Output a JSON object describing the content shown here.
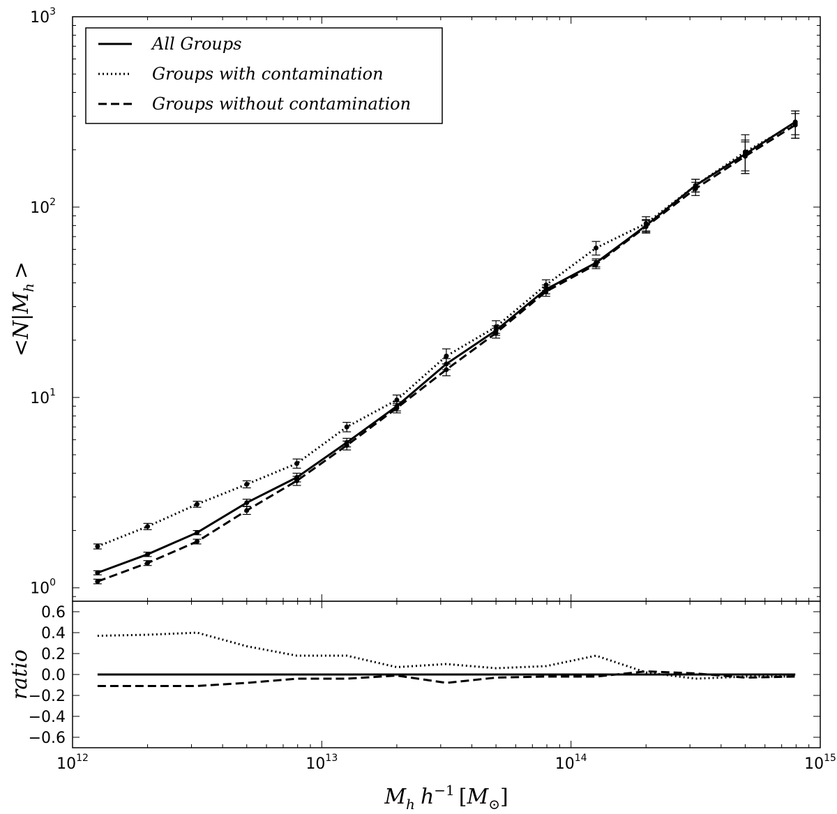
{
  "chart_data": {
    "type": "line",
    "xscale": "log",
    "xlim": [
      1000000000000.0,
      1000000000000000.0
    ],
    "xticks": [
      {
        "value": 1000000000000.0,
        "base": "10",
        "exp": "12"
      },
      {
        "value": 10000000000000.0,
        "base": "10",
        "exp": "13"
      },
      {
        "value": 100000000000000.0,
        "base": "10",
        "exp": "14"
      },
      {
        "value": 1000000000000000.0,
        "base": "10",
        "exp": "15"
      }
    ],
    "xlabel": "M_h h^{-1} [M_⊙]",
    "xlabel_parts": {
      "m": "M",
      "m_sub": "h",
      "h": "h",
      "h_sup": "−1",
      "open": "[",
      "msun": "M",
      "close": "]"
    },
    "top_panel": {
      "yscale": "log",
      "ylim": [
        0.85,
        1000
      ],
      "yticks": [
        {
          "value": 1,
          "base": "10",
          "exp": "0"
        },
        {
          "value": 10,
          "base": "10",
          "exp": "1"
        },
        {
          "value": 100,
          "base": "10",
          "exp": "2"
        },
        {
          "value": 1000,
          "base": "10",
          "exp": "3"
        }
      ],
      "ylabel": "<N|M_h>",
      "ylabel_parts": {
        "lt": "<",
        "n": "N",
        "bar": "|",
        "m": "M",
        "m_sub": "h",
        "gt": ">"
      },
      "legend_position": "top-left",
      "x": [
        1260000000000.0,
        2000000000000.0,
        3160000000000.0,
        5000000000000.0,
        7940000000000.0,
        12600000000000.0,
        20000000000000.0,
        31600000000000.0,
        50000000000000.0,
        79400000000000.0,
        126000000000000.0,
        200000000000000.0,
        316000000000000.0,
        500000000000000.0,
        794000000000000.0
      ],
      "series": [
        {
          "name": "All Groups",
          "style": "solid",
          "values": [
            1.2,
            1.5,
            1.95,
            2.8,
            3.8,
            5.8,
            9.0,
            15.0,
            22.5,
            37.0,
            51.0,
            80.0,
            130.0,
            190.0,
            280.0
          ],
          "errors": [
            0.03,
            0.04,
            0.05,
            0.12,
            0.2,
            0.3,
            0.5,
            1.0,
            1.3,
            2.0,
            2.5,
            6.0,
            10.0,
            35.0,
            40.0
          ]
        },
        {
          "name": "Groups with contamination",
          "style": "dotted",
          "values": [
            1.65,
            2.1,
            2.75,
            3.5,
            4.5,
            7.0,
            9.7,
            16.5,
            23.5,
            39.0,
            61.0,
            82.0,
            130.0,
            195.0,
            275.0
          ],
          "errors": [
            0.05,
            0.08,
            0.1,
            0.15,
            0.25,
            0.4,
            0.6,
            1.5,
            1.8,
            2.5,
            5.0,
            7.0,
            10.0,
            45.0,
            45.0
          ]
        },
        {
          "name": "Groups without contamination",
          "style": "dashed",
          "values": [
            1.08,
            1.35,
            1.75,
            2.55,
            3.65,
            5.6,
            8.8,
            14.0,
            21.8,
            36.0,
            50.0,
            79.0,
            125.0,
            185.0,
            270.0
          ],
          "errors": [
            0.03,
            0.04,
            0.05,
            0.12,
            0.2,
            0.3,
            0.5,
            1.0,
            1.3,
            2.0,
            2.5,
            6.0,
            10.0,
            35.0,
            40.0
          ]
        }
      ]
    },
    "bottom_panel": {
      "ylim": [
        -0.7,
        0.7
      ],
      "yticks": [
        "−0.6",
        "−0.4",
        "−0.2",
        "0.0",
        "0.2",
        "0.4",
        "0.6"
      ],
      "ytick_values": [
        -0.6,
        -0.4,
        -0.2,
        0.0,
        0.2,
        0.4,
        0.6
      ],
      "ylabel": "ratio",
      "x": [
        1260000000000.0,
        2000000000000.0,
        3160000000000.0,
        5000000000000.0,
        7940000000000.0,
        12600000000000.0,
        20000000000000.0,
        31600000000000.0,
        50000000000000.0,
        79400000000000.0,
        126000000000000.0,
        200000000000000.0,
        316000000000000.0,
        500000000000000.0,
        794000000000000.0
      ],
      "series": [
        {
          "name": "All Groups",
          "style": "solid",
          "values": [
            0,
            0,
            0,
            0,
            0,
            0,
            0,
            0,
            0,
            0,
            0,
            0,
            0,
            0,
            0
          ]
        },
        {
          "name": "Groups with contamination",
          "style": "dotted",
          "values": [
            0.37,
            0.38,
            0.4,
            0.27,
            0.18,
            0.18,
            0.07,
            0.1,
            0.06,
            0.08,
            0.18,
            0.02,
            -0.04,
            -0.02,
            -0.02
          ]
        },
        {
          "name": "Groups without contamination",
          "style": "dashed",
          "values": [
            -0.11,
            -0.11,
            -0.11,
            -0.08,
            -0.04,
            -0.04,
            -0.01,
            -0.08,
            -0.03,
            -0.02,
            -0.02,
            0.03,
            0.01,
            -0.03,
            -0.02
          ]
        }
      ]
    }
  }
}
